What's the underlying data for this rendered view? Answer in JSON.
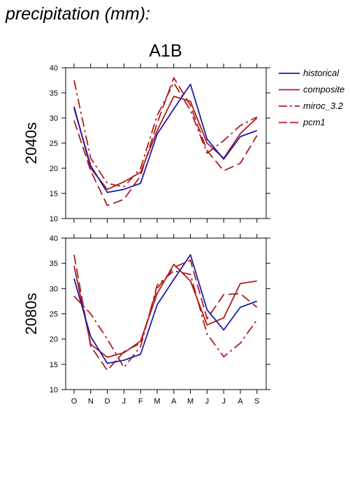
{
  "page_title": "precipitation (mm):",
  "chart_data": {
    "type": "line",
    "title": "A1B",
    "categories": [
      "O",
      "N",
      "D",
      "J",
      "F",
      "M",
      "A",
      "M",
      "J",
      "J",
      "A",
      "S"
    ],
    "ylim": [
      10,
      40
    ],
    "yticks": [
      10,
      15,
      20,
      25,
      30,
      35,
      40
    ],
    "grid": false,
    "legend_position": "top-right",
    "legend": [
      {
        "label": "historical",
        "color": "#1a1aaa",
        "dash": "solid"
      },
      {
        "label": "composite",
        "color": "#b01a1a",
        "dash": "solid"
      },
      {
        "label": "miroc_3.2",
        "color": "#b01a1a",
        "dash": "dashdot"
      },
      {
        "label": "pcm1",
        "color": "#b01a1a",
        "dash": "dashed"
      }
    ],
    "panels": [
      {
        "label": "2040s",
        "series": [
          {
            "name": "historical",
            "values": [
              32.0,
              20.5,
              15.2,
              15.8,
              17.0,
              26.8,
              31.8,
              36.7,
              25.8,
              21.8,
              26.3,
              27.5
            ]
          },
          {
            "name": "composite",
            "values": [
              32.3,
              20.0,
              15.8,
              17.3,
              19.2,
              27.5,
              34.3,
              33.3,
              25.0,
              22.0,
              26.9,
              30.0
            ]
          },
          {
            "name": "miroc_3.2",
            "values": [
              37.5,
              22.0,
              17.0,
              16.3,
              20.0,
              30.5,
              37.0,
              31.5,
              23.0,
              25.5,
              28.5,
              30.2
            ]
          },
          {
            "name": "pcm1",
            "values": [
              29.5,
              19.5,
              12.6,
              13.8,
              18.5,
              29.0,
              38.0,
              32.5,
              23.5,
              19.5,
              21.0,
              26.5
            ]
          }
        ]
      },
      {
        "label": "2080s",
        "series": [
          {
            "name": "historical",
            "values": [
              32.0,
              20.5,
              15.2,
              15.8,
              17.0,
              26.8,
              31.8,
              36.7,
              25.8,
              21.8,
              26.3,
              27.5
            ]
          },
          {
            "name": "composite",
            "values": [
              34.5,
              19.0,
              16.4,
              17.3,
              19.6,
              29.0,
              34.8,
              31.5,
              22.8,
              24.2,
              31.0,
              31.5
            ]
          },
          {
            "name": "miroc_3.2",
            "values": [
              28.5,
              25.0,
              20.0,
              14.4,
              18.5,
              30.7,
              33.5,
              32.8,
              21.0,
              16.5,
              19.2,
              23.8
            ]
          },
          {
            "name": "pcm1",
            "values": [
              36.7,
              18.6,
              13.8,
              17.5,
              19.2,
              30.0,
              34.2,
              35.6,
              24.0,
              28.8,
              29.0,
              26.3
            ]
          }
        ]
      }
    ]
  }
}
